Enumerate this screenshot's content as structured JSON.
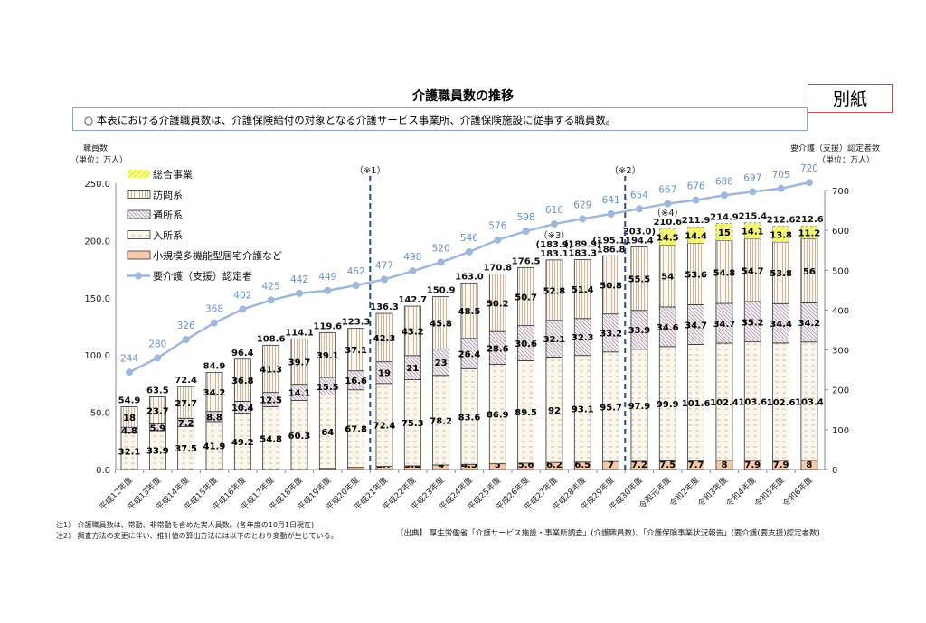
{
  "header": {
    "title": "介護職員数の推移",
    "tag": "別紙",
    "note": "○  本表における介護職員数は、介護保険給付の対象となる介護サービス事業所、介護保険施設に従事する職員数。"
  },
  "footnotes": [
    "注1） 介護職員数は、常勤、非常勤を含めた実人員数。(各年度の10月1日現在)",
    "注2） 調査方法の変更に伴い、推計値の算出方法には以下のとおり変動が生じている。"
  ],
  "source": "【出典】 厚生労働省「介護サービス施設・事業所調査」(介護職員数)、「介護保険事業状況報告」(要介護(要支援)認定者数)",
  "chart_data": {
    "type": "bar",
    "stacked": true,
    "title": "介護職員数の推移",
    "ylabel_left": [
      "職員数",
      "（単位：万人）"
    ],
    "ylabel_right": [
      "要介護（支援）認定者数",
      "（単位：万人）"
    ],
    "ylim_left": [
      0,
      250
    ],
    "yticks_left": [
      "0.0",
      "50.0",
      "100.0",
      "150.0",
      "200.0",
      "250.0"
    ],
    "ylim_right": [
      0,
      700
    ],
    "yticks_right": [
      "0",
      "100",
      "200",
      "300",
      "400",
      "500",
      "600",
      "700"
    ],
    "categories": [
      "平成12年度",
      "平成13年度",
      "平成14年度",
      "平成15年度",
      "平成16年度",
      "平成17年度",
      "平成18年度",
      "平成19年度",
      "平成20年度",
      "平成21年度",
      "平成22年度",
      "平成23年度",
      "平成24年度",
      "平成25年度",
      "平成26年度",
      "平成27年度",
      "平成28年度",
      "平成29年度",
      "平成30年度",
      "令和元年度",
      "令和2年度",
      "令和3年度",
      "令和4年度",
      "令和5年度",
      "令和6年度"
    ],
    "series": [
      {
        "name": "小規模多機能型居宅介護など",
        "color": "#f6c9a8",
        "pattern": "solid",
        "values": [
          0,
          0,
          0,
          0,
          0,
          0,
          0,
          1.0,
          1.8,
          2.7,
          3.2,
          4.0,
          4.5,
          5.0,
          5.6,
          6.2,
          6.5,
          7.0,
          7.2,
          7.5,
          7.7,
          8.0,
          7.9,
          7.9,
          8.0
        ]
      },
      {
        "name": "入所系",
        "color": "#fdf6ea",
        "pattern": "dash",
        "values": [
          32.1,
          33.9,
          37.5,
          41.9,
          49.2,
          54.8,
          60.3,
          64.0,
          67.8,
          72.4,
          75.3,
          78.2,
          83.6,
          86.9,
          89.5,
          92.0,
          93.1,
          95.7,
          97.9,
          99.9,
          101.6,
          102.4,
          103.6,
          102.6,
          103.4
        ]
      },
      {
        "name": "通所系",
        "color": "#f3eaf0",
        "pattern": "diagonal",
        "values": [
          4.8,
          5.9,
          7.2,
          8.8,
          10.4,
          12.5,
          14.1,
          15.5,
          16.6,
          19.0,
          21.0,
          23.0,
          26.4,
          28.6,
          30.6,
          32.1,
          32.3,
          33.2,
          33.9,
          34.6,
          34.7,
          34.7,
          35.2,
          34.4,
          34.2
        ]
      },
      {
        "name": "訪問系",
        "color": "#fdf6ea",
        "pattern": "vertical",
        "values": [
          18.0,
          23.7,
          27.7,
          34.2,
          36.8,
          41.3,
          39.7,
          39.1,
          37.1,
          42.3,
          43.2,
          45.8,
          48.5,
          50.2,
          50.7,
          52.8,
          51.4,
          50.8,
          55.5,
          54.0,
          53.6,
          54.8,
          54.7,
          53.8,
          56.0
        ]
      },
      {
        "name": "総合事業",
        "color": "#f2f25a",
        "pattern": "yellow-dash",
        "values": [
          0,
          0,
          0,
          0,
          0,
          0,
          0,
          0,
          0,
          0,
          0,
          0,
          0,
          0,
          0,
          0,
          0,
          0,
          0,
          14.5,
          14.4,
          15.0,
          14.1,
          13.8,
          11.2
        ]
      }
    ],
    "totals": [
      "54.9",
      "63.5",
      "72.4",
      "84.9",
      "96.4",
      "108.6",
      "114.1",
      "119.6",
      "123.3",
      "136.3",
      "142.7",
      "150.9",
      "163.0",
      "170.8",
      "176.5",
      "183.1",
      "183.3",
      "186.8",
      "194.4",
      "210.6",
      "211.9",
      "214.9",
      "215.4",
      "212.6",
      "212.6"
    ],
    "totals_alt": {
      "15": "(183.9)",
      "16": "(189.9)",
      "17": "(195.1)",
      "18": "203.0)"
    },
    "line": {
      "name": "要介護（支援）認定者",
      "axis": "right",
      "color": "#9db8dd",
      "values": [
        244,
        280,
        326,
        368,
        402,
        425,
        442,
        449,
        462,
        477,
        498,
        520,
        546,
        576,
        598,
        616,
        629,
        641,
        654,
        667,
        676,
        688,
        697,
        705,
        720
      ]
    },
    "annotations": [
      {
        "text": "（※1）",
        "type": "divider",
        "after_index": 8
      },
      {
        "text": "（※2）",
        "type": "divider",
        "after_index": 17
      },
      {
        "text": "（※3）",
        "type": "label",
        "index": 15
      },
      {
        "text": "（※4）",
        "type": "label",
        "index": 19
      }
    ],
    "legend": {
      "placement": "top-left",
      "order": [
        "総合事業",
        "訪問系",
        "通所系",
        "入所系",
        "小規模多機能型居宅介護など",
        "要介護（支援）認定者"
      ]
    }
  }
}
